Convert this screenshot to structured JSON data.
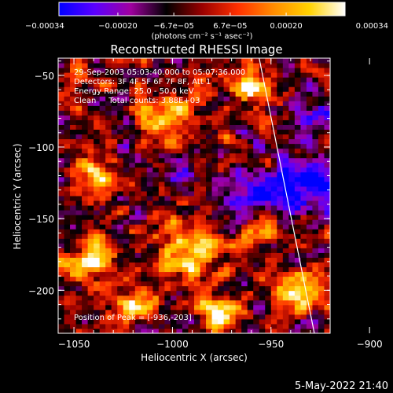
{
  "chart_data": {
    "type": "heatmap",
    "title": "Reconstructed RHESSI Image",
    "xlabel": "Heliocentric X (arcsec)",
    "ylabel": "Heliocentric Y (arcsec)",
    "xlim": [
      -1058,
      -920
    ],
    "ylim": [
      -230,
      -38
    ],
    "x_ticks": [
      -1050,
      -1000,
      -950,
      -900
    ],
    "y_ticks": [
      -200,
      -150,
      -100,
      -50
    ],
    "x_tick_labels": [
      "−1050",
      "−1000",
      "−950",
      "−900"
    ],
    "y_tick_labels": [
      "−200",
      "−150",
      "−100",
      "−50"
    ],
    "colorbar": {
      "range": [
        -0.00034,
        0.00034
      ],
      "ticks": [
        -0.00034,
        -0.0002,
        -6.7e-05,
        6.7e-05,
        0.0002,
        0.00034
      ],
      "tick_labels": [
        "−0.00034",
        "−0.00020",
        "−6.7e−05",
        "6.7e−05",
        "0.00020",
        "0.00034"
      ],
      "unit_label": "(photons cm⁻² s⁻¹ asec⁻²)",
      "colors": [
        "#0000ff",
        "#5b00ff",
        "#a000a0",
        "#000000",
        "#9a0000",
        "#ff3000",
        "#ff8c00",
        "#ffd200",
        "#ffffff"
      ]
    },
    "annotations": [
      "29-Sep-2003 05:03:40.000 to 05:07:36.000",
      "Detectors: 3F 4F 5F 6F 7F 8F, Att 1",
      "Energy Range: 25.0 - 50.0 keV",
      "Clean     Total counts: 3.88E+03"
    ],
    "peak_label": "Position of Peak = [-936,-203]",
    "peak": [
      -936,
      -203
    ],
    "limb_line": [
      [
        -956,
        -38
      ],
      [
        -928,
        -230
      ]
    ],
    "hot_regions": [
      {
        "x": -936,
        "y": -203,
        "r": 14,
        "v": 1.0
      },
      {
        "x": -960,
        "y": -60,
        "r": 10,
        "v": 0.85
      },
      {
        "x": -1005,
        "y": -80,
        "r": 14,
        "v": 0.75
      },
      {
        "x": -1040,
        "y": -120,
        "r": 12,
        "v": 0.7
      },
      {
        "x": -1040,
        "y": -175,
        "r": 14,
        "v": 0.75
      },
      {
        "x": -990,
        "y": -175,
        "r": 16,
        "v": 0.8
      },
      {
        "x": -1020,
        "y": -210,
        "r": 12,
        "v": 0.7
      },
      {
        "x": -975,
        "y": -215,
        "r": 10,
        "v": 0.85
      },
      {
        "x": -905,
        "y": -195,
        "r": 10,
        "v": 0.6
      },
      {
        "x": -955,
        "y": -160,
        "r": 10,
        "v": 0.55
      }
    ],
    "cold_regions": [
      {
        "x": -935,
        "y": -125,
        "r": 16,
        "v": 0.9
      },
      {
        "x": -960,
        "y": -130,
        "r": 12,
        "v": 0.6
      },
      {
        "x": -995,
        "y": -125,
        "r": 10,
        "v": 0.4
      },
      {
        "x": -925,
        "y": -75,
        "r": 14,
        "v": 0.5
      },
      {
        "x": -930,
        "y": -220,
        "r": 12,
        "v": 0.5
      },
      {
        "x": -905,
        "y": -150,
        "r": 10,
        "v": 0.5
      }
    ]
  },
  "footer": {
    "date": "5-May-2022 21:40"
  }
}
